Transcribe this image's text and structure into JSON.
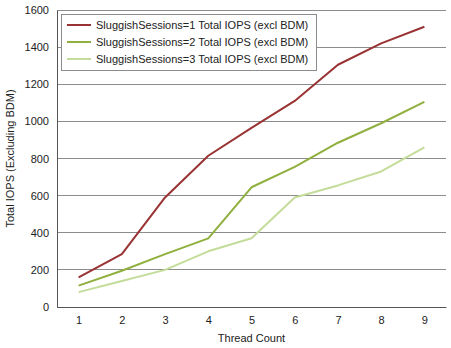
{
  "chart_data": {
    "type": "line",
    "x_label": "Thread Count",
    "y_label": "Total IOPS (Excluding BDM)",
    "categories": [
      "1",
      "2",
      "3",
      "4",
      "5",
      "6",
      "7",
      "8",
      "9"
    ],
    "series": [
      {
        "name": "SluggishSessions=1 Total IOPS (excl BDM)",
        "color": "#993333",
        "values": [
          160,
          285,
          590,
          815,
          965,
          1110,
          1305,
          1420,
          1510
        ]
      },
      {
        "name": "SluggishSessions=2 Total IOPS (excl BDM)",
        "color": "#8fb03e",
        "values": [
          115,
          195,
          285,
          370,
          645,
          755,
          885,
          990,
          1105
        ]
      },
      {
        "name": "SluggishSessions=3 Total IOPS (excl BDM)",
        "color": "#c4dc9a",
        "values": [
          80,
          140,
          200,
          300,
          370,
          590,
          655,
          730,
          860
        ]
      }
    ],
    "ylim": [
      0,
      1600
    ],
    "yticks": [
      0,
      200,
      400,
      600,
      800,
      1000,
      1200,
      1400,
      1600
    ],
    "grid": true,
    "legend": "top-left"
  }
}
